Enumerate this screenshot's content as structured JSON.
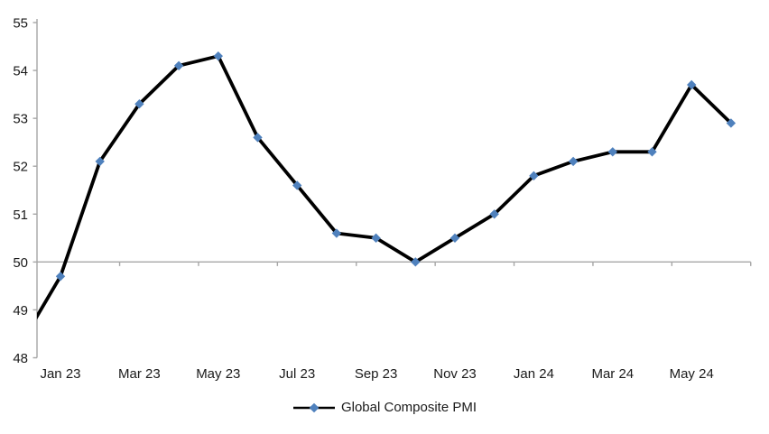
{
  "page": {
    "background": "#FFFFFF"
  },
  "chart_data": {
    "type": "line",
    "title": "",
    "x": [
      "Dec 22",
      "Jan 23",
      "Feb 23",
      "Mar 23",
      "Apr 23",
      "May 23",
      "Jun 23",
      "Jul 23",
      "Aug 23",
      "Sep 23",
      "Oct 23",
      "Nov 23",
      "Dec 23",
      "Jan 24",
      "Feb 24",
      "Mar 24",
      "Apr 24",
      "May 24",
      "Jun 24"
    ],
    "series": [
      {
        "name": "Global Composite PMI",
        "values": [
          48.3,
          49.7,
          52.1,
          53.3,
          54.1,
          54.3,
          52.6,
          51.6,
          50.6,
          50.5,
          50.0,
          50.5,
          51.0,
          51.8,
          52.1,
          52.3,
          52.3,
          53.7,
          52.9
        ]
      }
    ],
    "clipped_points": [
      "Dec 22"
    ],
    "x_axis": {
      "visible_tick_labels": [
        "Jan 23",
        "Mar 23",
        "May 23",
        "Jul 23",
        "Sep 23",
        "Nov 23",
        "Jan 24",
        "Mar 24",
        "May 24"
      ],
      "label_interval_months": 2,
      "crosses_at_value": 50
    },
    "y_axis": {
      "min": 48,
      "max": 55,
      "tick_step": 1,
      "tick_labels": [
        "48",
        "49",
        "50",
        "51",
        "52",
        "53",
        "54",
        "55"
      ]
    },
    "grid": false,
    "legend": {
      "position": "bottom",
      "entries": [
        {
          "label": "Global Composite PMI",
          "marker": "diamond-on-line"
        }
      ]
    },
    "colors": {
      "line": "#000000",
      "marker": "#4F81BD",
      "axis": "#A6A6A6",
      "text": "#1A1A1A"
    }
  }
}
